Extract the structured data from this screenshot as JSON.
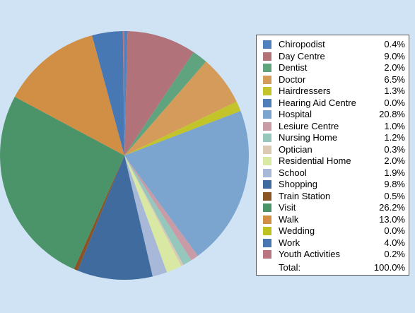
{
  "chart_data": {
    "type": "pie",
    "slices": [
      {
        "label": "Chiropodist",
        "value": 0.4,
        "display": "0.4%",
        "color": "#4f81bd"
      },
      {
        "label": "Day Centre",
        "value": 9.0,
        "display": "9.0%",
        "color": "#b2727a"
      },
      {
        "label": "Dentist",
        "value": 2.0,
        "display": "2.0%",
        "color": "#5fa37f"
      },
      {
        "label": "Doctor",
        "value": 6.5,
        "display": "6.5%",
        "color": "#d49b5a"
      },
      {
        "label": "Hairdressers",
        "value": 1.3,
        "display": "1.3%",
        "color": "#c2c42a"
      },
      {
        "label": "Hearing Aid Centre",
        "value": 0.0,
        "display": "0.0%",
        "color": "#4f7fb8"
      },
      {
        "label": "Hospital",
        "value": 20.8,
        "display": "20.8%",
        "color": "#7ba4cf"
      },
      {
        "label": "Lesiure Centre",
        "value": 1.0,
        "display": "1.0%",
        "color": "#c99ba6"
      },
      {
        "label": "Nursing Home",
        "value": 1.2,
        "display": "1.2%",
        "color": "#95c7bd"
      },
      {
        "label": "Optician",
        "value": 0.3,
        "display": "0.3%",
        "color": "#dcc9b3"
      },
      {
        "label": "Residential Home",
        "value": 2.0,
        "display": "2.0%",
        "color": "#d9e9a3"
      },
      {
        "label": "School",
        "value": 1.9,
        "display": "1.9%",
        "color": "#a8b8d8"
      },
      {
        "label": "Shopping",
        "value": 9.8,
        "display": "9.8%",
        "color": "#3f6b9e"
      },
      {
        "label": "Train Station",
        "value": 0.5,
        "display": "0.5%",
        "color": "#8a5424"
      },
      {
        "label": "Visit",
        "value": 26.2,
        "display": "26.2%",
        "color": "#4b946a"
      },
      {
        "label": "Walk",
        "value": 13.0,
        "display": "13.0%",
        "color": "#d18e45"
      },
      {
        "label": "Wedding",
        "value": 0.0,
        "display": "0.0%",
        "color": "#bcc21f"
      },
      {
        "label": "Work",
        "value": 4.0,
        "display": "4.0%",
        "color": "#4878b3"
      },
      {
        "label": "Youth Activities",
        "value": 0.2,
        "display": "0.2%",
        "color": "#b87680"
      }
    ],
    "legend_position": "right",
    "total": {
      "label": "Total:",
      "display": "100.0%"
    }
  },
  "colors": {
    "background": "#cfe3f4",
    "legend_background": "#ffffff",
    "legend_border": "#555555"
  }
}
